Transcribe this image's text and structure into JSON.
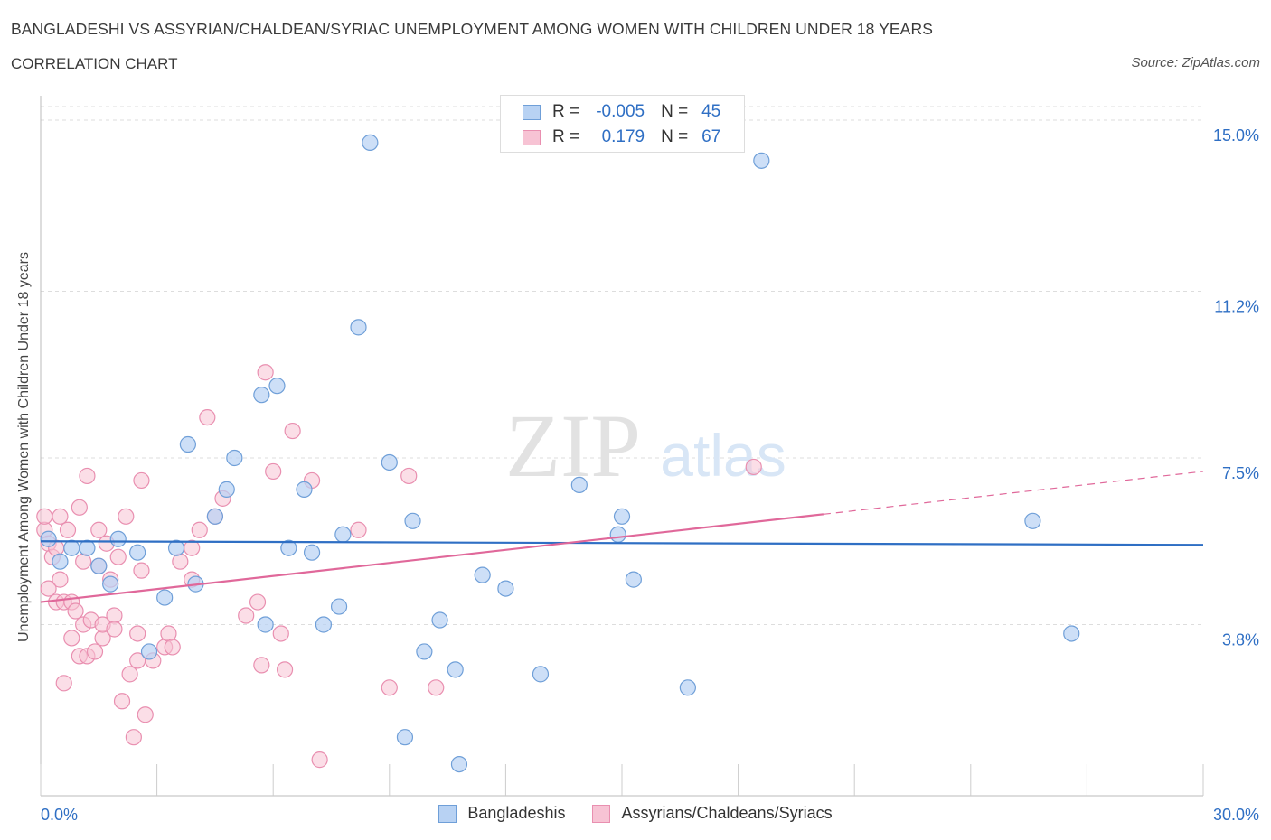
{
  "header": {
    "title": "BANGLADESHI VS ASSYRIAN/CHALDEAN/SYRIAC UNEMPLOYMENT AMONG WOMEN WITH CHILDREN UNDER 18 YEARS",
    "subtitle": "CORRELATION CHART",
    "source": "Source: ZipAtlas.com"
  },
  "watermark": {
    "zip": "ZIP",
    "atlas": "atlas"
  },
  "legend": {
    "rows": [
      {
        "r_label": "R =",
        "r_value": "-0.005",
        "n_label": "N =",
        "n_value": "45"
      },
      {
        "r_label": "R =",
        "r_value": "0.179",
        "n_label": "N =",
        "n_value": "67"
      }
    ]
  },
  "colors": {
    "blue_fill": "#b8d2f3",
    "blue_stroke": "#6f9fd8",
    "blue_line": "#2f6fc4",
    "pink_fill": "#f7c3d4",
    "pink_stroke": "#e98fb0",
    "pink_line": "#e0689a",
    "axis_text": "#2f6fc4",
    "grid": "#dddddd"
  },
  "chart_data": {
    "type": "scatter",
    "title": "BANGLADESHI VS ASSYRIAN/CHALDEAN/SYRIAC UNEMPLOYMENT AMONG WOMEN WITH CHILDREN UNDER 18 YEARS",
    "xlabel": "",
    "ylabel": "Unemployment Among Women with Children Under 18 years",
    "xlim": [
      0,
      30
    ],
    "ylim": [
      0,
      15.3
    ],
    "x_tick_labels": [
      "0.0%",
      "30.0%"
    ],
    "y_ticks": [
      3.8,
      7.5,
      11.2,
      15.0
    ],
    "y_tick_labels": [
      "3.8%",
      "7.5%",
      "11.2%",
      "15.0%"
    ],
    "grid": true,
    "legend_position": "bottom-center",
    "series": [
      {
        "name": "Bangladeshis",
        "r": -0.005,
        "n": 45,
        "trend": {
          "x": [
            0,
            30
          ],
          "y": [
            5.65,
            5.57
          ],
          "dashed_from": null
        },
        "points": [
          [
            0.2,
            5.7
          ],
          [
            0.5,
            5.2
          ],
          [
            0.8,
            5.5
          ],
          [
            1.2,
            5.5
          ],
          [
            1.5,
            5.1
          ],
          [
            1.8,
            4.7
          ],
          [
            2.0,
            5.7
          ],
          [
            2.5,
            5.4
          ],
          [
            2.8,
            3.2
          ],
          [
            3.2,
            4.4
          ],
          [
            3.5,
            5.5
          ],
          [
            3.8,
            7.8
          ],
          [
            4.0,
            4.7
          ],
          [
            4.5,
            6.2
          ],
          [
            4.8,
            6.8
          ],
          [
            5.0,
            7.5
          ],
          [
            5.7,
            8.9
          ],
          [
            5.8,
            3.8
          ],
          [
            6.1,
            9.1
          ],
          [
            6.4,
            5.5
          ],
          [
            6.8,
            6.8
          ],
          [
            7.0,
            5.4
          ],
          [
            7.3,
            3.8
          ],
          [
            7.7,
            4.2
          ],
          [
            7.8,
            5.8
          ],
          [
            8.2,
            10.4
          ],
          [
            8.5,
            14.5
          ],
          [
            9.0,
            7.4
          ],
          [
            9.4,
            1.3
          ],
          [
            9.6,
            6.1
          ],
          [
            9.9,
            3.2
          ],
          [
            10.3,
            3.9
          ],
          [
            10.7,
            2.8
          ],
          [
            10.8,
            0.7
          ],
          [
            11.4,
            4.9
          ],
          [
            12.0,
            4.6
          ],
          [
            12.9,
            2.7
          ],
          [
            13.9,
            6.9
          ],
          [
            14.9,
            5.8
          ],
          [
            15.0,
            6.2
          ],
          [
            15.3,
            4.8
          ],
          [
            16.7,
            2.4
          ],
          [
            18.6,
            14.1
          ],
          [
            25.6,
            6.1
          ],
          [
            26.6,
            3.6
          ]
        ]
      },
      {
        "name": "Assyrians/Chaldeans/Syriacs",
        "r": 0.179,
        "n": 67,
        "trend": {
          "x": [
            0,
            20.2,
            30
          ],
          "y": [
            4.3,
            6.25,
            7.2
          ],
          "dashed_from": 20.2
        },
        "points": [
          [
            0.1,
            5.9
          ],
          [
            0.1,
            6.2
          ],
          [
            0.2,
            5.6
          ],
          [
            0.2,
            4.6
          ],
          [
            0.3,
            5.3
          ],
          [
            0.4,
            5.5
          ],
          [
            0.4,
            4.3
          ],
          [
            0.5,
            4.8
          ],
          [
            0.5,
            6.2
          ],
          [
            0.6,
            4.3
          ],
          [
            0.6,
            2.5
          ],
          [
            0.7,
            5.9
          ],
          [
            0.8,
            3.5
          ],
          [
            0.8,
            4.3
          ],
          [
            0.9,
            4.1
          ],
          [
            1.0,
            3.1
          ],
          [
            1.0,
            6.4
          ],
          [
            1.1,
            3.8
          ],
          [
            1.1,
            5.2
          ],
          [
            1.2,
            3.1
          ],
          [
            1.2,
            7.1
          ],
          [
            1.3,
            3.9
          ],
          [
            1.4,
            3.2
          ],
          [
            1.5,
            5.1
          ],
          [
            1.5,
            5.9
          ],
          [
            1.6,
            3.5
          ],
          [
            1.6,
            3.8
          ],
          [
            1.7,
            5.6
          ],
          [
            1.8,
            4.8
          ],
          [
            1.9,
            4.0
          ],
          [
            1.9,
            3.7
          ],
          [
            2.0,
            5.3
          ],
          [
            2.1,
            2.1
          ],
          [
            2.2,
            6.2
          ],
          [
            2.3,
            2.7
          ],
          [
            2.4,
            1.3
          ],
          [
            2.5,
            3.0
          ],
          [
            2.5,
            3.6
          ],
          [
            2.6,
            5.0
          ],
          [
            2.6,
            7.0
          ],
          [
            2.7,
            1.8
          ],
          [
            2.9,
            3.0
          ],
          [
            3.2,
            3.3
          ],
          [
            3.3,
            3.6
          ],
          [
            3.4,
            3.3
          ],
          [
            3.6,
            5.2
          ],
          [
            3.9,
            5.5
          ],
          [
            3.9,
            4.8
          ],
          [
            4.1,
            5.9
          ],
          [
            4.3,
            8.4
          ],
          [
            4.5,
            6.2
          ],
          [
            4.7,
            6.6
          ],
          [
            5.3,
            4.0
          ],
          [
            5.6,
            4.3
          ],
          [
            5.7,
            2.9
          ],
          [
            5.8,
            9.4
          ],
          [
            6.0,
            7.2
          ],
          [
            6.2,
            3.6
          ],
          [
            6.3,
            2.8
          ],
          [
            6.5,
            8.1
          ],
          [
            7.0,
            7.0
          ],
          [
            7.2,
            0.8
          ],
          [
            8.2,
            5.9
          ],
          [
            9.0,
            2.4
          ],
          [
            9.5,
            7.1
          ],
          [
            10.2,
            2.4
          ],
          [
            18.4,
            7.3
          ]
        ]
      }
    ]
  }
}
